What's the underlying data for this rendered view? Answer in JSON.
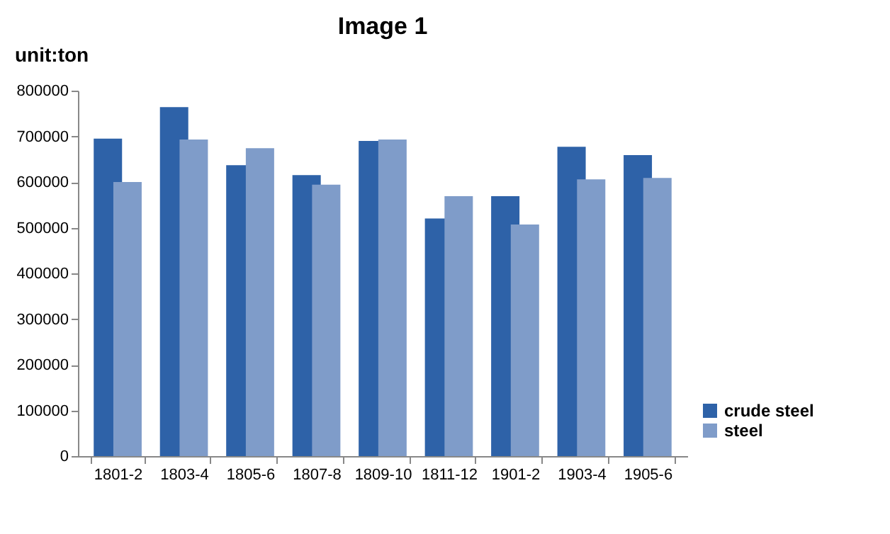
{
  "chart_data": {
    "type": "bar",
    "title": "Image 1",
    "ylabel": "unit:ton",
    "categories": [
      "1801-2",
      "1803-4",
      "1805-6",
      "1807-8",
      "1809-10",
      "1811-12",
      "1901-2",
      "1903-4",
      "1905-6"
    ],
    "series": [
      {
        "name": "crude steel",
        "color": "#2e62a8",
        "values": [
          695000,
          764000,
          637000,
          615000,
          690000,
          520000,
          569000,
          677000,
          659000
        ]
      },
      {
        "name": "steel",
        "color": "#7f9cc9",
        "values": [
          600000,
          693000,
          674000,
          594000,
          693000,
          569000,
          507000,
          606000,
          609000
        ]
      }
    ],
    "ylim": [
      0,
      800000
    ],
    "yticks": [
      0,
      100000,
      200000,
      300000,
      400000,
      500000,
      600000,
      700000,
      800000
    ],
    "grid": false,
    "legend": "bottom right"
  }
}
